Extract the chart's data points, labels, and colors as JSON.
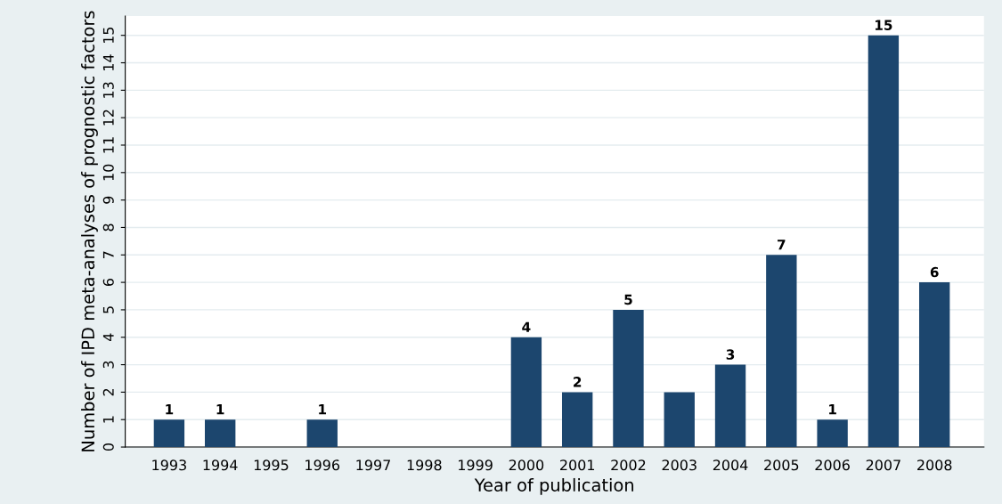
{
  "chart_data": {
    "type": "bar",
    "xlabel": "Year of publication",
    "ylabel": "Number of IPD meta-analyses of prognostic factors",
    "categories": [
      "1993",
      "1994",
      "1995",
      "1996",
      "1997",
      "1998",
      "1999",
      "2000",
      "2001",
      "2002",
      "2003",
      "2004",
      "2005",
      "2006",
      "2007",
      "2008"
    ],
    "values": [
      1,
      1,
      0,
      1,
      0,
      0,
      0,
      4,
      2,
      5,
      2,
      3,
      7,
      1,
      15,
      6
    ],
    "value_labels": [
      "1",
      "1",
      null,
      "1",
      null,
      null,
      null,
      "4",
      "2",
      "5",
      null,
      "3",
      "7",
      "1",
      "15",
      "6"
    ],
    "color": "#1c466e",
    "ylim": [
      0,
      15.7
    ],
    "yticks": [
      0,
      1,
      2,
      3,
      4,
      5,
      6,
      7,
      8,
      9,
      10,
      11,
      12,
      13,
      14,
      15
    ],
    "grid": "y",
    "legend": false
  }
}
